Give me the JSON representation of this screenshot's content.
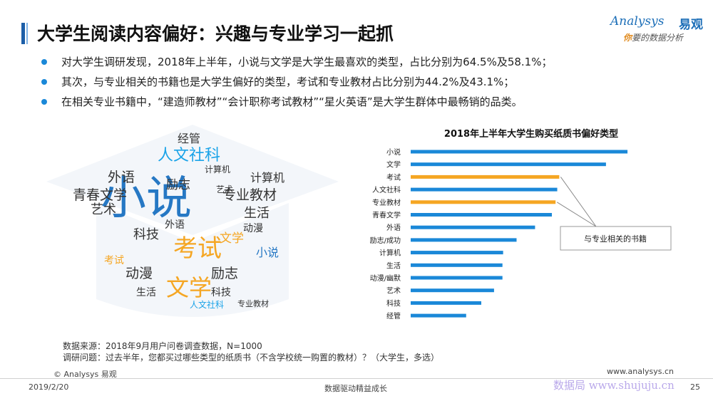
{
  "header": {
    "title": "大学生阅读内容偏好：兴趣与专业学习一起抓",
    "logo_text": "Analysys",
    "logo_cn": "易观",
    "logo_sub_lead": "你",
    "logo_sub_rest": "要的数据分析"
  },
  "bullets": [
    "对大学生调研发现，2018年上半年，小说与文学是大学生最喜欢的类型，占比分别为64.5%及58.1%；",
    "其次，与专业相关的书籍也是大学生偏好的类型，考试和专业教材占比分别为44.2%及43.1%；",
    "在相关专业书籍中，“建造师教材”“会计职称考试教材”“星火英语”是大学生群体中最畅销的品类。"
  ],
  "word_cloud": {
    "words": [
      {
        "text": "小说",
        "color": "#2678c4",
        "size": 64
      },
      {
        "text": "考试",
        "color": "#f5a623",
        "size": 34
      },
      {
        "text": "文学",
        "color": "#f5a623",
        "size": 32
      },
      {
        "text": "人文社科",
        "color": "#1aa3e8",
        "size": 22
      },
      {
        "text": "青春文学",
        "color": "#333333",
        "size": 19
      },
      {
        "text": "专业教材",
        "color": "#333333",
        "size": 19
      },
      {
        "text": "外语",
        "color": "#333333",
        "size": 19
      },
      {
        "text": "艺术",
        "color": "#333333",
        "size": 18
      },
      {
        "text": "生活",
        "color": "#333333",
        "size": 18
      },
      {
        "text": "科技",
        "color": "#333333",
        "size": 18
      },
      {
        "text": "动漫",
        "color": "#333333",
        "size": 19
      },
      {
        "text": "励志",
        "color": "#333333",
        "size": 19
      },
      {
        "text": "经管",
        "color": "#333333",
        "size": 16
      },
      {
        "text": "计算机",
        "color": "#333333",
        "size": 16
      },
      {
        "text": "文学",
        "color": "#f5a623",
        "size": 17
      },
      {
        "text": "小说",
        "color": "#2678c4",
        "size": 16
      },
      {
        "text": "考试",
        "color": "#f5a623",
        "size": 14
      },
      {
        "text": "励志",
        "color": "#333333",
        "size": 17
      },
      {
        "text": "生活",
        "color": "#333333",
        "size": 14
      },
      {
        "text": "科技",
        "color": "#333333",
        "size": 14
      },
      {
        "text": "动漫",
        "color": "#333333",
        "size": 14
      },
      {
        "text": "外语",
        "color": "#333333",
        "size": 14
      },
      {
        "text": "艺术",
        "color": "#333333",
        "size": 12
      },
      {
        "text": "计算机",
        "color": "#333333",
        "size": 12
      },
      {
        "text": "专业教材",
        "color": "#333333",
        "size": 11
      },
      {
        "text": "人文社科",
        "color": "#1aa3e8",
        "size": 12
      }
    ]
  },
  "chart_data": {
    "type": "bar",
    "orientation": "horizontal",
    "title": "2018年上半年大学生购买纸质书偏好类型",
    "categories": [
      "小说",
      "文学",
      "考试",
      "人文社科",
      "专业教材",
      "青春文学",
      "外语",
      "励志/成功",
      "计算机",
      "生活",
      "动漫/幽默",
      "艺术",
      "科技",
      "经管"
    ],
    "values": [
      64.5,
      58.1,
      44.2,
      43.6,
      43.1,
      42.0,
      37.0,
      31.5,
      27.5,
      27.3,
      27.3,
      24.8,
      21.0,
      16.5
    ],
    "highlight": [
      "考试",
      "专业教材"
    ],
    "colors": {
      "default": "#1a88d8",
      "highlight": "#f5a623"
    },
    "annotation": "与专业相关的书籍",
    "xlim": [
      0,
      70
    ],
    "grid": false,
    "axis_labels_shown": false
  },
  "source": {
    "line1": "数据来源：2018年9月用户问卷调查数据，N=1000",
    "line2": "调研问题：过去半年，您都买过哪些类型的纸质书（不含学校统一购置的教材）？（大学生，多选）"
  },
  "footer": {
    "copyright": "© Analysys 易观",
    "website": "www.analysys.cn",
    "date": "2019/2/20",
    "slogan": "数据驱动精益成长",
    "page": "25",
    "watermark": "数据局 www.shujuju.cn"
  }
}
